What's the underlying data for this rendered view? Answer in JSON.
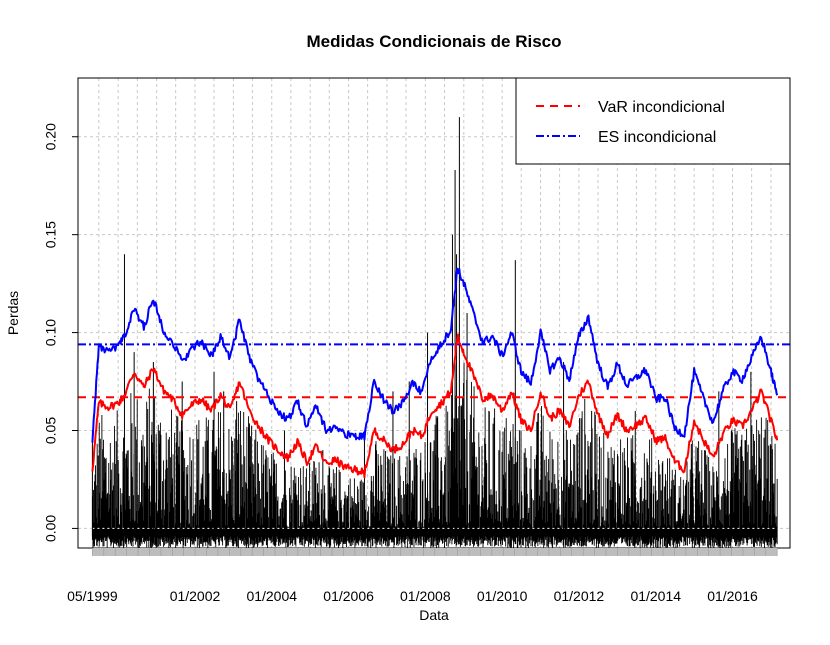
{
  "chart_data": {
    "type": "line",
    "title": "Medidas Condicionais de Risco",
    "xlabel": "Data",
    "ylabel": "Perdas",
    "ylim": [
      -0.01,
      0.23
    ],
    "xlim": [
      "1998-12-15",
      "2017-07-01"
    ],
    "y_ticks": [
      {
        "value": 0.0,
        "label": "0.00"
      },
      {
        "value": 0.05,
        "label": "0.05"
      },
      {
        "value": 0.1,
        "label": "0.10"
      },
      {
        "value": 0.15,
        "label": "0.15"
      },
      {
        "value": 0.2,
        "label": "0.20"
      }
    ],
    "x_ticks": [
      {
        "date": "1999-05-01",
        "label": "05/1999"
      },
      {
        "date": "2002-01-01",
        "label": "01/2002"
      },
      {
        "date": "2004-01-01",
        "label": "01/2004"
      },
      {
        "date": "2006-01-01",
        "label": "01/2006"
      },
      {
        "date": "2008-01-01",
        "label": "01/2008"
      },
      {
        "date": "2010-01-01",
        "label": "01/2010"
      },
      {
        "date": "2012-01-01",
        "label": "01/2012"
      },
      {
        "date": "2014-01-01",
        "label": "01/2014"
      },
      {
        "date": "2016-01-01",
        "label": "01/2016"
      }
    ],
    "grid": true,
    "legend_position": "top-right",
    "legend": [
      {
        "label": "VaR incondicional",
        "color": "#ff0000",
        "style": "dashed"
      },
      {
        "label": "ES incondicional",
        "color": "#0000ff",
        "style": "dotdash"
      }
    ],
    "hlines": [
      {
        "label": "VaR incondicional",
        "value": 0.067,
        "color": "#ff0000"
      },
      {
        "label": "ES incondicional",
        "value": 0.094,
        "color": "#0000ff"
      }
    ],
    "series": [
      {
        "label": "VaR condicional",
        "color": "#ff0000",
        "x": [
          "1999-05-01",
          "1999-07-01",
          "1999-10-01",
          "2000-01-01",
          "2000-03-01",
          "2000-06-01",
          "2000-09-01",
          "2000-12-01",
          "2001-03-01",
          "2001-06-01",
          "2001-09-01",
          "2001-12-01",
          "2002-03-01",
          "2002-06-01",
          "2002-09-01",
          "2002-12-01",
          "2003-03-01",
          "2003-06-01",
          "2003-09-01",
          "2003-12-01",
          "2004-03-01",
          "2004-06-01",
          "2004-09-01",
          "2004-12-01",
          "2005-03-01",
          "2005-06-01",
          "2005-09-01",
          "2005-12-01",
          "2006-03-01",
          "2006-05-01",
          "2006-06-01",
          "2006-09-01",
          "2006-12-01",
          "2007-03-01",
          "2007-06-01",
          "2007-09-01",
          "2007-12-01",
          "2008-03-01",
          "2008-06-01",
          "2008-09-01",
          "2008-11-01",
          "2009-01-01",
          "2009-04-01",
          "2009-07-01",
          "2009-10-01",
          "2010-01-01",
          "2010-04-01",
          "2010-07-01",
          "2010-10-01",
          "2011-01-01",
          "2011-04-01",
          "2011-07-01",
          "2011-10-01",
          "2012-01-01",
          "2012-04-01",
          "2012-07-01",
          "2012-10-01",
          "2013-01-01",
          "2013-04-01",
          "2013-07-01",
          "2013-10-01",
          "2014-01-01",
          "2014-04-01",
          "2014-07-01",
          "2014-10-01",
          "2015-01-01",
          "2015-04-01",
          "2015-07-01",
          "2015-10-01",
          "2016-01-01",
          "2016-04-01",
          "2016-07-01",
          "2016-10-01",
          "2017-01-01",
          "2017-03-01"
        ],
        "y": [
          0.03,
          0.064,
          0.062,
          0.064,
          0.068,
          0.08,
          0.072,
          0.082,
          0.071,
          0.066,
          0.058,
          0.063,
          0.066,
          0.06,
          0.068,
          0.06,
          0.075,
          0.06,
          0.052,
          0.045,
          0.04,
          0.036,
          0.044,
          0.034,
          0.042,
          0.033,
          0.035,
          0.031,
          0.03,
          0.029,
          0.028,
          0.05,
          0.045,
          0.04,
          0.043,
          0.05,
          0.047,
          0.06,
          0.064,
          0.07,
          0.098,
          0.09,
          0.078,
          0.066,
          0.068,
          0.06,
          0.07,
          0.055,
          0.05,
          0.07,
          0.056,
          0.06,
          0.052,
          0.068,
          0.075,
          0.058,
          0.048,
          0.058,
          0.05,
          0.053,
          0.056,
          0.045,
          0.046,
          0.034,
          0.03,
          0.055,
          0.045,
          0.036,
          0.048,
          0.055,
          0.052,
          0.06,
          0.07,
          0.055,
          0.045
        ]
      },
      {
        "label": "ES condicional",
        "color": "#0000ff",
        "x": [
          "1999-05-01",
          "1999-07-01",
          "1999-10-01",
          "2000-01-01",
          "2000-03-01",
          "2000-06-01",
          "2000-09-01",
          "2000-12-01",
          "2001-03-01",
          "2001-06-01",
          "2001-09-01",
          "2001-12-01",
          "2002-03-01",
          "2002-06-01",
          "2002-09-01",
          "2002-12-01",
          "2003-03-01",
          "2003-06-01",
          "2003-09-01",
          "2003-12-01",
          "2004-03-01",
          "2004-06-01",
          "2004-09-01",
          "2004-12-01",
          "2005-03-01",
          "2005-06-01",
          "2005-09-01",
          "2005-12-01",
          "2006-03-01",
          "2006-05-01",
          "2006-06-01",
          "2006-09-01",
          "2006-12-01",
          "2007-03-01",
          "2007-06-01",
          "2007-09-01",
          "2007-12-01",
          "2008-03-01",
          "2008-06-01",
          "2008-09-01",
          "2008-11-01",
          "2009-01-01",
          "2009-04-01",
          "2009-07-01",
          "2009-10-01",
          "2010-01-01",
          "2010-04-01",
          "2010-07-01",
          "2010-10-01",
          "2011-01-01",
          "2011-04-01",
          "2011-07-01",
          "2011-10-01",
          "2012-01-01",
          "2012-04-01",
          "2012-07-01",
          "2012-10-01",
          "2013-01-01",
          "2013-04-01",
          "2013-07-01",
          "2013-10-01",
          "2014-01-01",
          "2014-04-01",
          "2014-07-01",
          "2014-10-01",
          "2015-01-01",
          "2015-04-01",
          "2015-07-01",
          "2015-10-01",
          "2016-01-01",
          "2016-04-01",
          "2016-07-01",
          "2016-10-01",
          "2017-01-01",
          "2017-03-01"
        ],
        "y": [
          0.045,
          0.093,
          0.09,
          0.093,
          0.098,
          0.112,
          0.103,
          0.117,
          0.102,
          0.095,
          0.085,
          0.092,
          0.095,
          0.088,
          0.098,
          0.087,
          0.107,
          0.087,
          0.076,
          0.067,
          0.06,
          0.055,
          0.065,
          0.052,
          0.063,
          0.05,
          0.052,
          0.048,
          0.047,
          0.047,
          0.047,
          0.075,
          0.066,
          0.06,
          0.064,
          0.074,
          0.069,
          0.088,
          0.094,
          0.102,
          0.133,
          0.125,
          0.11,
          0.095,
          0.098,
          0.088,
          0.1,
          0.08,
          0.074,
          0.1,
          0.081,
          0.087,
          0.076,
          0.098,
          0.108,
          0.084,
          0.072,
          0.084,
          0.073,
          0.077,
          0.081,
          0.066,
          0.067,
          0.051,
          0.048,
          0.08,
          0.066,
          0.054,
          0.07,
          0.08,
          0.076,
          0.087,
          0.098,
          0.08,
          0.068
        ]
      }
    ],
    "loss_peaks": [
      {
        "date": "1999-05-01",
        "value": 0.05
      },
      {
        "date": "2000-03-01",
        "value": 0.14
      },
      {
        "date": "2000-06-01",
        "value": 0.09
      },
      {
        "date": "2000-12-01",
        "value": 0.085
      },
      {
        "date": "2001-09-01",
        "value": 0.075
      },
      {
        "date": "2002-07-01",
        "value": 0.08
      },
      {
        "date": "2002-10-01",
        "value": 0.07
      },
      {
        "date": "2003-02-01",
        "value": 0.065
      },
      {
        "date": "2004-05-01",
        "value": 0.05
      },
      {
        "date": "2005-05-01",
        "value": 0.04
      },
      {
        "date": "2006-06-01",
        "value": 0.05
      },
      {
        "date": "2007-02-27",
        "value": 0.07
      },
      {
        "date": "2007-08-01",
        "value": 0.075
      },
      {
        "date": "2008-01-22",
        "value": 0.1
      },
      {
        "date": "2008-09-15",
        "value": 0.15
      },
      {
        "date": "2008-10-10",
        "value": 0.183
      },
      {
        "date": "2008-10-24",
        "value": 0.14
      },
      {
        "date": "2008-11-20",
        "value": 0.21
      },
      {
        "date": "2009-02-01",
        "value": 0.11
      },
      {
        "date": "2010-05-06",
        "value": 0.137
      },
      {
        "date": "2011-08-08",
        "value": 0.085
      },
      {
        "date": "2012-05-01",
        "value": 0.06
      },
      {
        "date": "2013-06-20",
        "value": 0.06
      },
      {
        "date": "2015-08-24",
        "value": 0.07
      },
      {
        "date": "2016-06-24",
        "value": 0.08
      }
    ]
  }
}
